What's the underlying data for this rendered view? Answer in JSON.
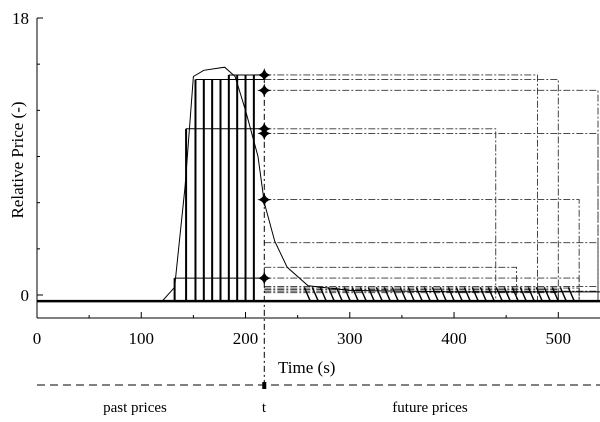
{
  "chart_data": {
    "type": "line",
    "xlabel": "Time (s)",
    "ylabel": "Relative Price (-)",
    "xlim": [
      0,
      540
    ],
    "ylim": [
      -0.5,
      18
    ],
    "x_ticks": [
      0,
      100,
      200,
      300,
      400,
      500
    ],
    "y_ticks": [
      0,
      18
    ],
    "grid": false,
    "current_time": 218,
    "bottom_labels": {
      "past": "past prices",
      "now": "t",
      "future": "future prices"
    },
    "series": [
      {
        "x": [
          0,
          120,
          132,
          142,
          150,
          160,
          170,
          180,
          190,
          200,
          212,
          218,
          228,
          240,
          260,
          300,
          400,
          540
        ],
        "values": [
          -0.4,
          -0.4,
          0.5,
          7,
          14.2,
          14.6,
          14.7,
          14.8,
          14.2,
          12,
          9,
          6,
          3.5,
          1.8,
          0.6,
          0.3,
          0.2,
          0.2
        ]
      }
    ],
    "current_markers": [
      14.3,
      13.3,
      10.8,
      10.5,
      6.2,
      1.1
    ],
    "past_bars": [
      {
        "x": 132,
        "y": 1.1
      },
      {
        "x": 143,
        "y": 10.8
      },
      {
        "x": 152,
        "y": 14.0
      },
      {
        "x": 160,
        "y": 14.0
      },
      {
        "x": 168,
        "y": 14.0
      },
      {
        "x": 176,
        "y": 14.0
      },
      {
        "x": 184,
        "y": 14.3
      },
      {
        "x": 192,
        "y": 14.3
      },
      {
        "x": 200,
        "y": 14.3
      },
      {
        "x": 208,
        "y": 14.3
      }
    ],
    "projections": [
      {
        "level": 14.3,
        "end": 480
      },
      {
        "level": 14.0,
        "end": 500
      },
      {
        "level": 13.3,
        "end": 540
      },
      {
        "level": 10.8,
        "end": 440
      },
      {
        "level": 10.5,
        "end": 540
      },
      {
        "level": 6.2,
        "end": 520
      },
      {
        "level": 3.4,
        "end": 540
      },
      {
        "level": 1.8,
        "end": 460
      },
      {
        "level": 1.1,
        "end": 520
      },
      {
        "level": 0.55,
        "end": 540
      },
      {
        "level": 0.45,
        "end": 520
      },
      {
        "level": 0.35,
        "end": 500
      },
      {
        "level": 0.25,
        "end": 540
      },
      {
        "level": 0.15,
        "end": 500
      }
    ]
  }
}
